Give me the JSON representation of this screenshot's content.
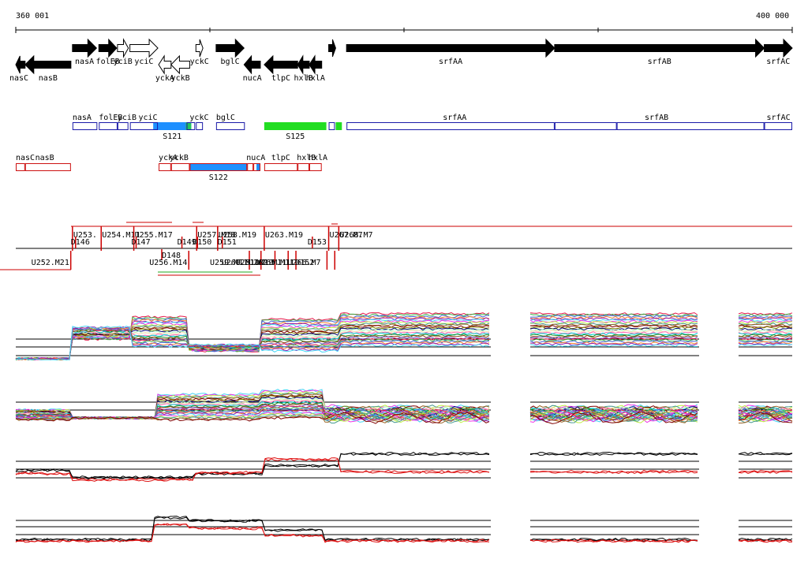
{
  "ruler": {
    "start_label": "360 001",
    "end_label": "400 000",
    "start": 360001,
    "end": 400000,
    "ticks": [
      370000,
      380000,
      390000
    ]
  },
  "genes": [
    {
      "name": "nasC",
      "from": 0,
      "to": 0.012,
      "dir": "-",
      "lane": "low",
      "filled": true,
      "label_side": "left"
    },
    {
      "name": "nasB",
      "from": 0.012,
      "to": 0.071,
      "dir": "-",
      "lane": "low",
      "filled": true
    },
    {
      "name": "nasA",
      "from": 0.073,
      "to": 0.104,
      "dir": "+",
      "lane": "high",
      "filled": true
    },
    {
      "name": "folEB",
      "from": 0.107,
      "to": 0.13,
      "dir": "+",
      "lane": "high",
      "filled": true
    },
    {
      "name": "yciB",
      "from": 0.131,
      "to": 0.145,
      "dir": "+",
      "lane": "high",
      "filled": false
    },
    {
      "name": "yciC",
      "from": 0.147,
      "to": 0.183,
      "dir": "+",
      "lane": "high",
      "filled": false
    },
    {
      "name": "yckA",
      "from": 0.184,
      "to": 0.2,
      "dir": "-",
      "lane": "low",
      "filled": false
    },
    {
      "name": "yckB",
      "from": 0.2,
      "to": 0.224,
      "dir": "-",
      "lane": "low",
      "filled": false
    },
    {
      "name": "yckC",
      "from": 0.232,
      "to": 0.241,
      "dir": "+",
      "lane": "high",
      "filled": false
    },
    {
      "name": "bglC",
      "from": 0.258,
      "to": 0.294,
      "dir": "+",
      "lane": "high",
      "filled": true
    },
    {
      "name": "nucA",
      "from": 0.294,
      "to": 0.315,
      "dir": "-",
      "lane": "low",
      "filled": true
    },
    {
      "name": "tlpC",
      "from": 0.32,
      "to": 0.363,
      "dir": "-",
      "lane": "low",
      "filled": true
    },
    {
      "name": "hxlB",
      "from": 0.363,
      "to": 0.378,
      "dir": "-",
      "lane": "low",
      "filled": true
    },
    {
      "name": "hxlA",
      "from": 0.378,
      "to": 0.394,
      "dir": "-",
      "lane": "low",
      "filled": true
    },
    {
      "name": "",
      "from": 0.403,
      "to": 0.412,
      "dir": "+",
      "lane": "high",
      "filled": true
    },
    {
      "name": "srfAA",
      "from": 0.426,
      "to": 0.694,
      "dir": "+",
      "lane": "high",
      "filled": true
    },
    {
      "name": "srfAB",
      "from": 0.694,
      "to": 0.964,
      "dir": "+",
      "lane": "high",
      "filled": true
    },
    {
      "name": "srfAC",
      "from": 0.964,
      "to": 1.0,
      "dir": "+",
      "lane": "high",
      "filled": true
    }
  ],
  "forward_transcripts": {
    "labels": [
      {
        "text": "nasA",
        "at": 0.073
      },
      {
        "text": "folEB",
        "at": 0.107
      },
      {
        "text": "yciB",
        "at": 0.131
      },
      {
        "text": "yciC",
        "at": 0.158
      },
      {
        "text": "yckC",
        "at": 0.224
      },
      {
        "text": "bglC",
        "at": 0.258
      },
      {
        "text": "srfAA",
        "at": 0.55
      },
      {
        "text": "srfAB",
        "at": 0.81
      },
      {
        "text": "srfAC",
        "at": 0.967
      }
    ],
    "boxes": [
      {
        "from": 0.073,
        "to": 0.105
      },
      {
        "from": 0.107,
        "to": 0.131
      },
      {
        "from": 0.131,
        "to": 0.145
      },
      {
        "from": 0.147,
        "to": 0.183
      },
      {
        "from": 0.22,
        "to": 0.231
      },
      {
        "from": 0.232,
        "to": 0.241
      },
      {
        "from": 0.258,
        "to": 0.295
      },
      {
        "from": 0.403,
        "to": 0.411
      },
      {
        "from": 0.426,
        "to": 0.694
      },
      {
        "from": 0.694,
        "to": 0.774
      },
      {
        "from": 0.774,
        "to": 0.964
      },
      {
        "from": 0.964,
        "to": 1.0
      }
    ],
    "segments": [
      {
        "name": "S121",
        "from": 0.177,
        "to": 0.226,
        "color": "#1e90ff"
      },
      {
        "name": "",
        "from": 0.219,
        "to": 0.226,
        "color": "#22c55e"
      },
      {
        "name": "S125",
        "from": 0.32,
        "to": 0.4,
        "color": "#22dd22"
      },
      {
        "name": "",
        "from": 0.412,
        "to": 0.42,
        "color": "#22dd22"
      }
    ]
  },
  "reverse_transcripts": {
    "labels": [
      {
        "text": "nasC",
        "at": 0.0
      },
      {
        "text": "nasB",
        "at": 0.025
      },
      {
        "text": "yckA",
        "at": 0.184
      },
      {
        "text": "yckB",
        "at": 0.198
      },
      {
        "text": "nucA",
        "at": 0.297
      },
      {
        "text": "tlpC",
        "at": 0.329
      },
      {
        "text": "hxlB",
        "at": 0.362
      },
      {
        "text": "hxlA",
        "at": 0.377
      }
    ],
    "boxes": [
      {
        "from": 0.0,
        "to": 0.012
      },
      {
        "from": 0.012,
        "to": 0.071
      },
      {
        "from": 0.184,
        "to": 0.2
      },
      {
        "from": 0.2,
        "to": 0.224
      },
      {
        "from": 0.224,
        "to": 0.298
      },
      {
        "from": 0.298,
        "to": 0.306
      },
      {
        "from": 0.306,
        "to": 0.315
      },
      {
        "from": 0.32,
        "to": 0.363
      },
      {
        "from": 0.363,
        "to": 0.378
      },
      {
        "from": 0.378,
        "to": 0.394
      }
    ],
    "segments": [
      {
        "name": "S122",
        "from": 0.224,
        "to": 0.298,
        "color": "#1e90ff"
      },
      {
        "name": "",
        "from": 0.31,
        "to": 0.315,
        "color": "#1e90ff"
      }
    ]
  },
  "upshifts": [
    {
      "label": "U253.",
      "at": 0.073
    },
    {
      "label": "U254.M11",
      "at": 0.11
    },
    {
      "label": "U255.M17",
      "at": 0.152
    },
    {
      "label": "U257.M18",
      "at": 0.233
    },
    {
      "label": "U258.M19",
      "at": 0.26
    },
    {
      "label": "U263.M19",
      "at": 0.32
    },
    {
      "label": "U267.M7",
      "at": 0.403
    },
    {
      "label": "U268.M7",
      "at": 0.416
    }
  ],
  "down_mid": [
    {
      "label": "D146",
      "at": 0.077
    },
    {
      "label": "D147",
      "at": 0.155
    },
    {
      "label": "D149",
      "at": 0.214
    },
    {
      "label": "D150",
      "at": 0.234
    },
    {
      "label": "D151",
      "at": 0.266
    },
    {
      "label": "D153",
      "at": 0.382
    }
  ],
  "down_low": [
    {
      "label": "D148",
      "at": 0.188
    }
  ],
  "upshifts_low": [
    {
      "label": "U252.M21",
      "at": 0.02
    },
    {
      "label": "U256.M14",
      "at": 0.172
    },
    {
      "label": "U259.M11",
      "at": 0.25
    },
    {
      "label": "U260.M10",
      "at": 0.265
    },
    {
      "label": "U261.M19",
      "at": 0.283
    },
    {
      "label": "U262.M11",
      "at": 0.3
    },
    {
      "label": "U265.M11",
      "at": 0.31
    },
    {
      "label": "U266.M7",
      "at": 0.35
    },
    {
      "label": "D152",
      "at": 0.36
    }
  ]
}
